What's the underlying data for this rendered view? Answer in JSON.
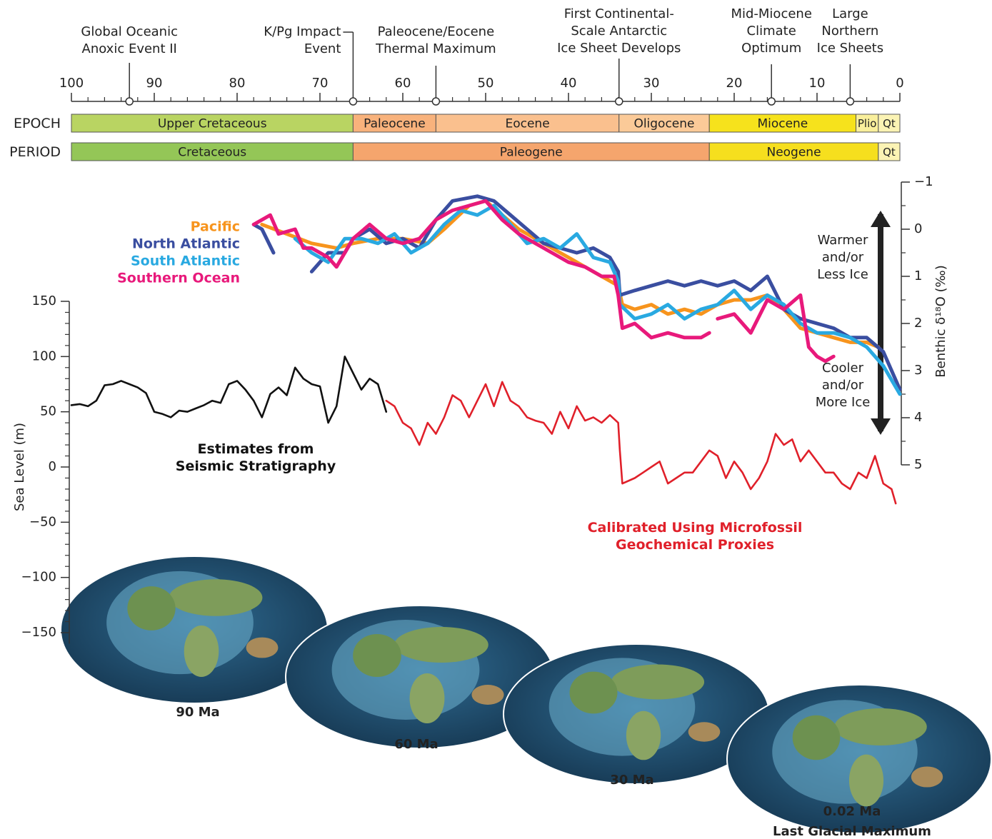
{
  "chart_data": [
    {
      "type": "timescale",
      "xlim": [
        100,
        0
      ],
      "xticks": [
        100,
        90,
        80,
        70,
        60,
        50,
        40,
        30,
        20,
        10,
        0
      ],
      "xminorticks": [
        98,
        96,
        94,
        92,
        88,
        86,
        84,
        82,
        78,
        76,
        74,
        72,
        68,
        66,
        64,
        62,
        58,
        56,
        54,
        52,
        48,
        46,
        44,
        42,
        38,
        36,
        34,
        32,
        28,
        26,
        24,
        22,
        18,
        16,
        14,
        12,
        8,
        6,
        4,
        2
      ],
      "events": [
        {
          "label": "Global Oceanic\nAnoxic Event II",
          "value": 93
        },
        {
          "label": "K/Pg Impact\nEvent",
          "value": 66
        },
        {
          "label": "Paleocene/Eocene\nThermal Maximum",
          "value": 56
        },
        {
          "label": "First Continental-\nScale Antarctic\nIce Sheet Develops",
          "value": 33.9
        },
        {
          "label": "Mid-Miocene\nClimate\nOptimum",
          "value": 15.5
        },
        {
          "label": "Large\nNorthern\nIce Sheets",
          "value": 6
        }
      ],
      "rows": [
        {
          "label": "EPOCH",
          "units": [
            {
              "name": "Upper Cretaceous",
              "start": 100,
              "end": 66,
              "color": "#b9d462"
            },
            {
              "name": "Paleocene",
              "start": 66,
              "end": 56,
              "color": "#f8b27c"
            },
            {
              "name": "Eocene",
              "start": 56,
              "end": 33.9,
              "color": "#fac08e"
            },
            {
              "name": "Oligocene",
              "start": 33.9,
              "end": 23,
              "color": "#fbca98"
            },
            {
              "name": "Miocene",
              "start": 23,
              "end": 5.3,
              "color": "#f6e21c"
            },
            {
              "name": "Plio",
              "start": 5.3,
              "end": 2.6,
              "color": "#f9ef9c"
            },
            {
              "name": "Qt",
              "start": 2.6,
              "end": 0,
              "color": "#fbf3b4"
            }
          ]
        },
        {
          "label": "PERIOD",
          "units": [
            {
              "name": "Cretaceous",
              "start": 100,
              "end": 66,
              "color": "#94c657"
            },
            {
              "name": "Paleogene",
              "start": 66,
              "end": 23,
              "color": "#f5a56d"
            },
            {
              "name": "Neogene",
              "start": 23,
              "end": 2.6,
              "color": "#f6df1e"
            },
            {
              "name": "Qt",
              "start": 2.6,
              "end": 0,
              "color": "#fbf3b4"
            }
          ]
        }
      ]
    },
    {
      "type": "line",
      "y_label": "Benthic δ¹⁸O (‰)",
      "xlim": [
        100,
        0
      ],
      "ylim": [
        5,
        -1
      ],
      "yticks": [
        {
          "value": -1,
          "label": "−1"
        },
        0,
        1,
        2,
        3,
        4,
        5
      ],
      "yminorticks": [
        -0.5,
        0.5,
        1.5,
        2.5,
        3.5,
        4.5
      ],
      "annotations": [
        "Warmer\nand/or\nLess Ice",
        "Cooler\nand/or\nMore Ice"
      ],
      "series": [
        {
          "name": "Pacific",
          "color": "#f7941d",
          "x": [
            77,
            74,
            71,
            68,
            66,
            63,
            60,
            57,
            55,
            52,
            50,
            48,
            46,
            44,
            42,
            40,
            37,
            35,
            34,
            33.5,
            32,
            30,
            28,
            26,
            24,
            22,
            20,
            18,
            16,
            14,
            12,
            10,
            8,
            6,
            4,
            2.6
          ],
          "values": [
            -0.1,
            0.1,
            0.3,
            0.4,
            0.3,
            0.2,
            0.2,
            0.3,
            0.0,
            -0.5,
            -0.6,
            -0.3,
            0.0,
            0.2,
            0.4,
            0.6,
            0.9,
            1.1,
            1.2,
            1.6,
            1.7,
            1.6,
            1.8,
            1.7,
            1.8,
            1.6,
            1.5,
            1.5,
            1.4,
            1.7,
            2.1,
            2.2,
            2.3,
            2.4,
            2.4,
            2.5
          ]
        },
        {
          "name": "North Atlantic",
          "color": "#3a4ea0",
          "x": [
            78,
            77,
            75.6,
            73,
            71,
            69,
            67,
            66,
            64,
            62,
            60,
            58,
            56,
            54,
            51,
            49,
            47,
            45,
            43,
            41,
            39,
            37,
            35,
            34,
            33.8,
            32,
            30,
            28,
            26,
            24,
            22,
            20,
            18,
            16,
            14,
            12,
            10,
            8,
            6,
            4,
            2,
            0
          ],
          "values": [
            -0.1,
            0.0,
            0.5,
            null,
            0.9,
            0.5,
            0.5,
            0.2,
            0.0,
            0.3,
            0.2,
            0.4,
            -0.2,
            -0.6,
            -0.7,
            -0.6,
            -0.3,
            0.0,
            0.3,
            0.4,
            0.5,
            0.4,
            0.6,
            0.9,
            1.4,
            1.3,
            1.2,
            1.1,
            1.2,
            1.1,
            1.2,
            1.1,
            1.3,
            1.0,
            1.7,
            1.9,
            2.0,
            2.1,
            2.3,
            2.3,
            2.6,
            3.4
          ]
        },
        {
          "name": "South Atlantic",
          "color": "#29a9e1",
          "x": [
            73,
            71,
            69,
            67,
            65,
            63,
            61,
            59,
            57,
            55,
            53,
            51,
            49,
            47,
            45,
            43,
            41,
            39,
            37,
            35,
            34,
            33.8,
            32,
            30,
            28,
            26,
            24,
            22,
            20,
            18,
            16,
            14,
            12,
            10,
            8,
            6,
            4,
            2,
            0
          ],
          "values": [
            0.2,
            0.5,
            0.7,
            0.2,
            0.2,
            0.3,
            0.1,
            0.5,
            0.3,
            -0.1,
            -0.4,
            -0.3,
            -0.5,
            -0.1,
            0.3,
            0.2,
            0.4,
            0.1,
            0.6,
            0.7,
            1.1,
            1.6,
            1.9,
            1.8,
            1.6,
            1.9,
            1.7,
            1.6,
            1.3,
            1.7,
            1.4,
            1.6,
            2.0,
            2.2,
            2.2,
            2.3,
            2.5,
            2.9,
            3.5
          ]
        },
        {
          "name": "Southern Ocean",
          "color": "#e8197b",
          "x": [
            78,
            76,
            75,
            73,
            72,
            71,
            69,
            68,
            66,
            64,
            62,
            60,
            58,
            56,
            54,
            52,
            50,
            48,
            46,
            44,
            42,
            40,
            38,
            36,
            34.5,
            34,
            33.5,
            32,
            30,
            28,
            26,
            24,
            23,
            22.5,
            22,
            20,
            18,
            16,
            14,
            12,
            11,
            10,
            9,
            8
          ],
          "values": [
            -0.1,
            -0.3,
            0.1,
            0.0,
            0.4,
            0.4,
            0.6,
            0.8,
            0.2,
            -0.1,
            0.2,
            0.3,
            0.2,
            -0.2,
            -0.4,
            -0.5,
            -0.6,
            -0.2,
            0.1,
            0.3,
            0.5,
            0.7,
            0.8,
            1.0,
            1.0,
            1.4,
            2.1,
            2.0,
            2.3,
            2.2,
            2.3,
            2.3,
            2.2,
            null,
            1.9,
            1.8,
            2.2,
            1.5,
            1.7,
            1.4,
            2.5,
            2.7,
            2.8,
            2.7
          ]
        }
      ]
    },
    {
      "type": "line",
      "y_label": "Sea Level (m)",
      "xlim": [
        100,
        0
      ],
      "ylim": [
        -160,
        150
      ],
      "yticks": [
        150,
        100,
        50,
        0,
        {
          "value": -50,
          "label": "−50"
        },
        {
          "value": -100,
          "label": "−100"
        },
        {
          "value": -150,
          "label": "−150"
        }
      ],
      "yminorticks": [
        140,
        130,
        120,
        110,
        90,
        80,
        70,
        60,
        40,
        30,
        20,
        10,
        -10,
        -20,
        -30,
        -40,
        -60,
        -70,
        -80,
        -90,
        -110,
        -120,
        -130,
        -140
      ],
      "series": [
        {
          "name": "Estimates from\nSeismic Stratigraphy",
          "color": "#111111",
          "x": [
            100,
            99,
            98,
            97,
            96,
            95,
            94,
            93,
            92,
            91,
            90,
            89,
            88,
            87,
            86,
            85,
            84,
            83,
            82,
            81,
            80,
            79,
            78,
            77,
            76,
            75,
            74,
            73,
            72,
            71,
            70,
            69,
            68,
            67,
            66,
            65,
            64,
            63,
            62
          ],
          "values": [
            56,
            57,
            55,
            60,
            74,
            75,
            78,
            75,
            72,
            67,
            50,
            48,
            45,
            51,
            50,
            53,
            56,
            60,
            58,
            75,
            78,
            70,
            60,
            45,
            66,
            72,
            65,
            90,
            80,
            75,
            73,
            40,
            55,
            100,
            85,
            70,
            80,
            75,
            50
          ]
        },
        {
          "name": "Calibrated Using Microfossil\nGeochemical Proxies",
          "color": "#e0202a",
          "x": [
            62,
            61,
            60,
            59,
            58,
            57,
            56,
            55,
            54,
            53,
            52,
            51,
            50,
            49,
            48,
            47,
            46,
            45,
            44,
            43,
            42,
            41,
            40,
            39,
            38,
            37,
            36,
            35,
            34,
            33.8,
            33.5,
            32,
            31,
            30,
            29,
            28,
            27,
            26,
            25,
            24,
            23,
            22,
            21,
            20,
            19,
            18,
            17,
            16,
            15,
            14,
            13,
            12,
            11,
            10,
            9,
            8,
            7,
            6,
            5,
            4,
            3,
            2,
            1,
            0.5
          ],
          "values": [
            60,
            55,
            40,
            35,
            20,
            40,
            30,
            45,
            65,
            60,
            45,
            60,
            75,
            55,
            77,
            60,
            55,
            45,
            42,
            40,
            30,
            50,
            35,
            55,
            42,
            45,
            40,
            47,
            40,
            15,
            -15,
            -10,
            -5,
            0,
            5,
            -15,
            -10,
            -5,
            -5,
            5,
            15,
            10,
            -10,
            5,
            -5,
            -20,
            -10,
            5,
            30,
            20,
            25,
            5,
            15,
            5,
            -5,
            -5,
            -15,
            -20,
            -5,
            -10,
            10,
            -15,
            -20,
            -33
          ]
        }
      ]
    },
    {
      "type": "maps",
      "maps": [
        {
          "label": "90 Ma"
        },
        {
          "label": "60 Ma"
        },
        {
          "label": "30 Ma"
        },
        {
          "label": "0.02 Ma",
          "caption": "Last Glacial Maximum"
        }
      ]
    }
  ]
}
